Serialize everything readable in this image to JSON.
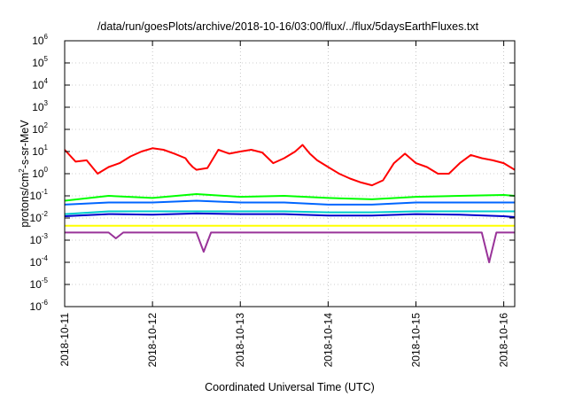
{
  "chart_data": {
    "type": "line",
    "title": "/data/run/goesPlots/archive/2018-10-16/03:00/flux/../flux/5daysEarthFluxes.txt",
    "xlabel": "Coordinated Universal Time (UTC)",
    "ylabel": {
      "base": "protons/cm",
      "sup": "2",
      "rest": "-s-sr-MeV"
    },
    "y_scale": "log",
    "ylim": [
      1e-06,
      1000000.0
    ],
    "y_ticks": [
      {
        "value": 1000000.0,
        "base": "10",
        "exp": "6"
      },
      {
        "value": 100000.0,
        "base": "10",
        "exp": "5"
      },
      {
        "value": 10000.0,
        "base": "10",
        "exp": "4"
      },
      {
        "value": 1000.0,
        "base": "10",
        "exp": "3"
      },
      {
        "value": 100.0,
        "base": "10",
        "exp": "2"
      },
      {
        "value": 10.0,
        "base": "10",
        "exp": "1"
      },
      {
        "value": 1.0,
        "base": "10",
        "exp": "0"
      },
      {
        "value": 0.1,
        "base": "10",
        "exp": "-1"
      },
      {
        "value": 0.01,
        "base": "10",
        "exp": "-2"
      },
      {
        "value": 0.001,
        "base": "10",
        "exp": "-3"
      },
      {
        "value": 0.0001,
        "base": "10",
        "exp": "-4"
      },
      {
        "value": 1e-05,
        "base": "10",
        "exp": "-5"
      },
      {
        "value": 1e-06,
        "base": "10",
        "exp": "-6"
      }
    ],
    "x_ticks": [
      "2018-10-11",
      "2018-10-12",
      "2018-10-13",
      "2018-10-14",
      "2018-10-15",
      "2018-10-16"
    ],
    "xlim": [
      "2018-10-11T00:00",
      "2018-10-16T03:00"
    ],
    "grid": true,
    "series": [
      {
        "color": "#ff0000",
        "x": [
          "2018-10-11T00:00",
          "2018-10-11T03:00",
          "2018-10-11T06:00",
          "2018-10-11T09:00",
          "2018-10-11T12:00",
          "2018-10-11T15:00",
          "2018-10-11T18:00",
          "2018-10-11T21:00",
          "2018-10-12T00:00",
          "2018-10-12T03:00",
          "2018-10-12T06:00",
          "2018-10-12T09:00",
          "2018-10-12T10:00",
          "2018-10-12T11:00",
          "2018-10-12T12:00",
          "2018-10-12T15:00",
          "2018-10-12T18:00",
          "2018-10-12T21:00",
          "2018-10-13T00:00",
          "2018-10-13T03:00",
          "2018-10-13T06:00",
          "2018-10-13T09:00",
          "2018-10-13T12:00",
          "2018-10-13T15:00",
          "2018-10-13T17:00",
          "2018-10-13T19:00",
          "2018-10-13T21:00",
          "2018-10-14T00:00",
          "2018-10-14T03:00",
          "2018-10-14T06:00",
          "2018-10-14T09:00",
          "2018-10-14T12:00",
          "2018-10-14T15:00",
          "2018-10-14T18:00",
          "2018-10-14T21:00",
          "2018-10-15T00:00",
          "2018-10-15T03:00",
          "2018-10-15T06:00",
          "2018-10-15T09:00",
          "2018-10-15T12:00",
          "2018-10-15T15:00",
          "2018-10-15T18:00",
          "2018-10-15T21:00",
          "2018-10-16T00:00",
          "2018-10-16T03:00"
        ],
        "y": [
          12,
          3.5,
          4,
          1,
          2,
          3,
          6,
          10,
          14,
          12,
          8,
          5,
          3,
          2,
          1.5,
          1.8,
          12,
          8,
          10,
          12,
          9,
          3,
          5,
          10,
          20,
          8,
          4,
          2,
          1,
          0.6,
          0.4,
          0.3,
          0.5,
          3,
          8,
          3,
          2,
          1,
          1,
          3,
          7,
          5,
          4,
          3,
          1.5
        ]
      },
      {
        "color": "#00ff00",
        "x": [
          "2018-10-11T00:00",
          "2018-10-11T12:00",
          "2018-10-12T00:00",
          "2018-10-12T12:00",
          "2018-10-13T00:00",
          "2018-10-13T12:00",
          "2018-10-14T00:00",
          "2018-10-14T12:00",
          "2018-10-15T00:00",
          "2018-10-15T12:00",
          "2018-10-16T00:00",
          "2018-10-16T03:00"
        ],
        "y": [
          0.06,
          0.1,
          0.08,
          0.12,
          0.09,
          0.1,
          0.08,
          0.07,
          0.09,
          0.1,
          0.11,
          0.1
        ]
      },
      {
        "color": "#0066ff",
        "x": [
          "2018-10-11T00:00",
          "2018-10-11T12:00",
          "2018-10-12T00:00",
          "2018-10-12T12:00",
          "2018-10-13T00:00",
          "2018-10-13T12:00",
          "2018-10-14T00:00",
          "2018-10-14T12:00",
          "2018-10-15T00:00",
          "2018-10-15T12:00",
          "2018-10-16T00:00",
          "2018-10-16T03:00"
        ],
        "y": [
          0.04,
          0.05,
          0.05,
          0.06,
          0.05,
          0.05,
          0.04,
          0.04,
          0.05,
          0.05,
          0.05,
          0.05
        ]
      },
      {
        "color": "#00cccc",
        "x": [
          "2018-10-11T00:00",
          "2018-10-11T12:00",
          "2018-10-12T00:00",
          "2018-10-12T12:00",
          "2018-10-13T00:00",
          "2018-10-13T12:00",
          "2018-10-14T00:00",
          "2018-10-14T12:00",
          "2018-10-15T00:00",
          "2018-10-15T12:00",
          "2018-10-16T00:00",
          "2018-10-16T03:00"
        ],
        "y": [
          0.015,
          0.02,
          0.02,
          0.02,
          0.02,
          0.02,
          0.018,
          0.018,
          0.02,
          0.02,
          0.02,
          0.02
        ]
      },
      {
        "color": "#0000cc",
        "x": [
          "2018-10-11T00:00",
          "2018-10-11T12:00",
          "2018-10-12T00:00",
          "2018-10-12T12:00",
          "2018-10-13T00:00",
          "2018-10-13T12:00",
          "2018-10-14T00:00",
          "2018-10-14T12:00",
          "2018-10-15T00:00",
          "2018-10-15T12:00",
          "2018-10-16T00:00",
          "2018-10-16T03:00"
        ],
        "y": [
          0.012,
          0.015,
          0.014,
          0.016,
          0.015,
          0.015,
          0.013,
          0.013,
          0.015,
          0.014,
          0.012,
          0.011
        ]
      },
      {
        "color": "#ffff00",
        "x": [
          "2018-10-11T00:00",
          "2018-10-11T12:00",
          "2018-10-12T00:00",
          "2018-10-12T12:00",
          "2018-10-13T00:00",
          "2018-10-13T12:00",
          "2018-10-14T00:00",
          "2018-10-14T12:00",
          "2018-10-15T00:00",
          "2018-10-15T12:00",
          "2018-10-16T00:00",
          "2018-10-16T03:00"
        ],
        "y": [
          0.0045,
          0.0045,
          0.0045,
          0.0045,
          0.0045,
          0.0045,
          0.0045,
          0.0045,
          0.0045,
          0.0045,
          0.0045,
          0.0045
        ]
      },
      {
        "color": "#993399",
        "x": [
          "2018-10-11T00:00",
          "2018-10-11T12:00",
          "2018-10-11T14:00",
          "2018-10-11T16:00",
          "2018-10-12T00:00",
          "2018-10-12T12:00",
          "2018-10-12T14:00",
          "2018-10-12T16:00",
          "2018-10-13T00:00",
          "2018-10-13T12:00",
          "2018-10-14T00:00",
          "2018-10-14T12:00",
          "2018-10-15T00:00",
          "2018-10-15T12:00",
          "2018-10-15T18:00",
          "2018-10-15T20:00",
          "2018-10-15T22:00",
          "2018-10-16T00:00",
          "2018-10-16T03:00"
        ],
        "y": [
          0.0022,
          0.0022,
          0.0012,
          0.0022,
          0.0022,
          0.0022,
          0.0003,
          0.0022,
          0.0022,
          0.0022,
          0.0022,
          0.0022,
          0.0022,
          0.0022,
          0.0022,
          0.0001,
          0.0022,
          0.0022,
          0.0022
        ]
      }
    ]
  }
}
